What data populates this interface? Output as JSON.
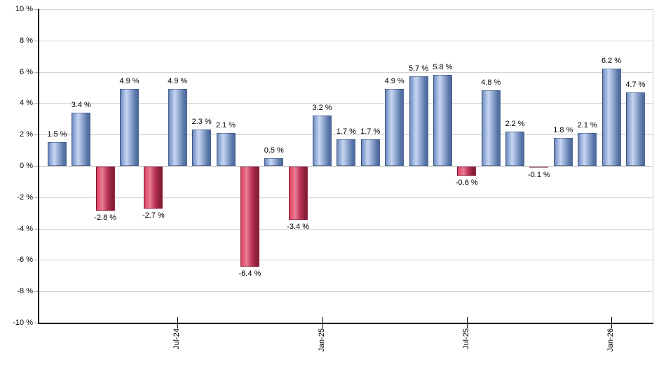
{
  "chart_data": {
    "type": "bar",
    "title": "",
    "xlabel": "",
    "ylabel": "",
    "ylim": [
      -10,
      10
    ],
    "grid": true,
    "legend": "none",
    "values": [
      1.5,
      3.4,
      -2.8,
      4.9,
      -2.7,
      4.9,
      2.3,
      2.1,
      -6.4,
      0.5,
      -3.4,
      3.2,
      1.7,
      1.7,
      4.9,
      5.7,
      5.8,
      -0.6,
      4.8,
      2.2,
      -0.1,
      1.8,
      2.1,
      6.2,
      4.7
    ],
    "bar_labels": [
      "1.5 %",
      "3.4 %",
      "-2.8 %",
      "4.9 %",
      "-2.7 %",
      "4.9 %",
      "2.3 %",
      "2.1 %",
      "-6.4 %",
      "0.5 %",
      "-3.4 %",
      "3.2 %",
      "1.7 %",
      "1.7 %",
      "4.9 %",
      "5.7 %",
      "5.8 %",
      "-0.6 %",
      "4.8 %",
      "2.2 %",
      "-0.1 %",
      "1.8 %",
      "2.1 %",
      "6.2 %",
      "4.7 %"
    ],
    "y_tick_labels": [
      "10 %",
      "8 %",
      "6 %",
      "4 %",
      "2 %",
      "0 %",
      "-2 %",
      "-4 %",
      "-6 %",
      "-8 %",
      "-10 %"
    ],
    "y_tick_values": [
      10,
      8,
      6,
      4,
      2,
      0,
      -2,
      -4,
      -6,
      -8,
      -10
    ],
    "x_tick_labels": [
      {
        "label": "Jul-24",
        "bar_index": 5
      },
      {
        "label": "Jan-25",
        "bar_index": 11
      },
      {
        "label": "Jul-25",
        "bar_index": 17
      },
      {
        "label": "Jan-26",
        "bar_index": 23
      }
    ],
    "colors": {
      "positive_bar_left": "#6e88b8",
      "positive_bar_highlight": "#c7d6f1",
      "positive_bar_right": "#4d6b9d",
      "negative_bar_left": "#dd4263",
      "negative_bar_highlight": "#e87e94",
      "negative_bar_right": "#7e1a33",
      "gridline": "#d2d2d2",
      "zero_line": "#bdbdbd",
      "axis": "#000000",
      "label_text": "#000000",
      "background": "#ffffff"
    }
  }
}
